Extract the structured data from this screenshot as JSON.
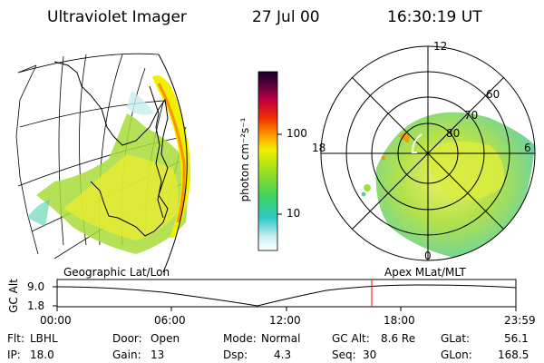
{
  "header": {
    "instrument": "Ultraviolet Imager",
    "date": "27 Jul 00",
    "time": "16:30:19 UT"
  },
  "colorbar": {
    "label": "photon cm⁻²s⁻¹",
    "ticks": [
      "100",
      "10"
    ]
  },
  "polar": {
    "mlt_labels": [
      "12",
      "18",
      "6",
      "0"
    ],
    "lat_labels": [
      "60",
      "70",
      "80"
    ]
  },
  "plot_labels": {
    "left": "Geographic Lat/Lon",
    "right": "Apex MLat/MLT"
  },
  "orbit": {
    "ylabel": "GC Alt",
    "ytick_top": "9.0",
    "ytick_bottom": "1.8",
    "xticks": [
      "00:00",
      "06:00",
      "12:00",
      "18:00",
      "23:59"
    ],
    "marker_color": "#ff0000"
  },
  "info": {
    "row1": {
      "filter_label": "Flt:",
      "filter": "LBHL",
      "door_label": "Door:",
      "door": "Open",
      "mode_label": "Mode:",
      "mode": "Normal",
      "alt_label": "GC Alt:",
      "alt": "8.6 Re",
      "glat_label": "GLat:",
      "glat": "56.1"
    },
    "row2": {
      "ip_label": "IP:",
      "ip": "18.0",
      "gain_label": "Gain:",
      "gain": "13",
      "dsp_label": "Dsp:",
      "dsp": "4.3",
      "seq_label": "Seq:",
      "seq": "30",
      "glon_label": "GLon:",
      "glon": "168.5"
    }
  }
}
